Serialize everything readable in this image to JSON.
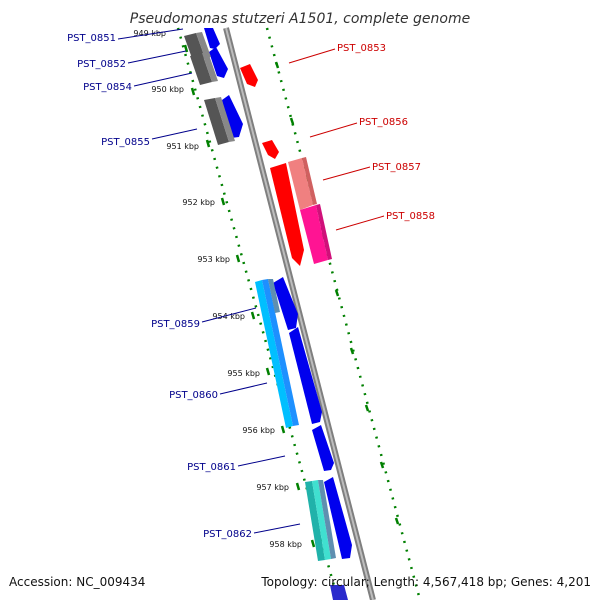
{
  "title": "Pseudomonas stutzeri A1501, complete genome",
  "footer": {
    "accession": "Accession: NC_009434",
    "topology": "Topology: circular; Length: 4,567,418 bp; Genes: 4,201"
  },
  "ticks": [
    {
      "label": "949 kbp"
    },
    {
      "label": "950 kbp"
    },
    {
      "label": "951 kbp"
    },
    {
      "label": "952 kbp"
    },
    {
      "label": "953 kbp"
    },
    {
      "label": "954 kbp"
    },
    {
      "label": "955 kbp"
    },
    {
      "label": "956 kbp"
    },
    {
      "label": "957 kbp"
    },
    {
      "label": "958 kbp"
    }
  ],
  "genes_left": [
    {
      "id": "PST_0851",
      "color": "#00008b"
    },
    {
      "id": "PST_0852",
      "color": "#00008b"
    },
    {
      "id": "PST_0854",
      "color": "#00008b"
    },
    {
      "id": "PST_0855",
      "color": "#00008b"
    },
    {
      "id": "PST_0859",
      "color": "#00008b"
    },
    {
      "id": "PST_0860",
      "color": "#00008b"
    },
    {
      "id": "PST_0861",
      "color": "#00008b"
    },
    {
      "id": "PST_0862",
      "color": "#00008b"
    }
  ],
  "genes_right": [
    {
      "id": "PST_0853",
      "color": "#cc0000"
    },
    {
      "id": "PST_0856",
      "color": "#cc0000"
    },
    {
      "id": "PST_0857",
      "color": "#cc0000"
    },
    {
      "id": "PST_0858",
      "color": "#cc0000"
    }
  ],
  "colors": {
    "forward": "#0000ee",
    "reverse": "#ff0000",
    "backbone": "#888888",
    "tick": "#008000",
    "grey_feature": "#666666",
    "cyan_feature": "#00bfff",
    "pink_feature": "#ff4fa0",
    "teal_feature": "#20b2aa"
  }
}
